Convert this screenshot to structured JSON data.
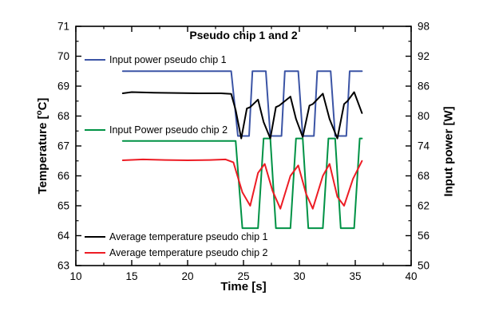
{
  "chart_data": {
    "type": "line",
    "title": "Pseudo chip 1 and 2",
    "xlabel": "Time [s]",
    "ylabel_left": {
      "pre": "Temperature [",
      "sup": "o",
      "post": "C]"
    },
    "ylabel_right": "Input power [W]",
    "x_range": [
      10,
      40
    ],
    "x_major_ticks": [
      10,
      15,
      20,
      25,
      30,
      35,
      40
    ],
    "x_minor_step": 2.5,
    "y_left_range": [
      63,
      71
    ],
    "y_left_ticks": [
      63,
      64,
      65,
      66,
      67,
      68,
      69,
      70,
      71
    ],
    "y_left_minor_step": 0.5,
    "y_right_range": [
      50,
      98
    ],
    "y_right_ticks": [
      50,
      56,
      62,
      68,
      74,
      80,
      86,
      92,
      98
    ],
    "y_right_minor_step": 3,
    "grid": false,
    "legend_position": "inside-left",
    "axis_color": "#000000",
    "background_color": "#ffffff",
    "series": [
      {
        "name": "Input power pseudo chip 1",
        "color": "#3b54a5",
        "axis": "right",
        "unit": "W",
        "points": [
          [
            14.2,
            89
          ],
          [
            23.9,
            89
          ],
          [
            24.5,
            76
          ],
          [
            25.5,
            76
          ],
          [
            25.8,
            89
          ],
          [
            27.0,
            89
          ],
          [
            27.4,
            76
          ],
          [
            28.4,
            76
          ],
          [
            28.7,
            89
          ],
          [
            29.9,
            89
          ],
          [
            30.3,
            76
          ],
          [
            31.3,
            76
          ],
          [
            31.6,
            89
          ],
          [
            32.8,
            89
          ],
          [
            33.2,
            76
          ],
          [
            34.2,
            76
          ],
          [
            34.5,
            89
          ],
          [
            35.6,
            89
          ]
        ]
      },
      {
        "name": "Input Power pseudo chip 2",
        "color": "#009245",
        "axis": "right",
        "unit": "W",
        "points": [
          [
            14.2,
            75
          ],
          [
            24.3,
            75
          ],
          [
            24.9,
            57.5
          ],
          [
            26.3,
            57.5
          ],
          [
            26.8,
            75.5
          ],
          [
            27.4,
            75.5
          ],
          [
            27.9,
            57.5
          ],
          [
            29.2,
            57.5
          ],
          [
            29.7,
            75.5
          ],
          [
            30.3,
            75.5
          ],
          [
            30.8,
            57.5
          ],
          [
            32.1,
            57.5
          ],
          [
            32.6,
            75.5
          ],
          [
            33.2,
            75.5
          ],
          [
            33.7,
            57.5
          ],
          [
            34.9,
            57.5
          ],
          [
            35.4,
            75.5
          ],
          [
            35.6,
            75.5
          ]
        ]
      },
      {
        "name": "Average temperature pseudo chip 1",
        "color": "#000000",
        "axis": "left",
        "unit": "°C",
        "points": [
          [
            14.2,
            68.76
          ],
          [
            15.0,
            68.8
          ],
          [
            17.0,
            68.78
          ],
          [
            19.0,
            68.77
          ],
          [
            21.0,
            68.76
          ],
          [
            23.0,
            68.76
          ],
          [
            23.9,
            68.74
          ],
          [
            24.3,
            68.2
          ],
          [
            24.8,
            67.25
          ],
          [
            25.3,
            68.25
          ],
          [
            25.6,
            68.3
          ],
          [
            26.3,
            68.55
          ],
          [
            26.8,
            67.8
          ],
          [
            27.4,
            67.25
          ],
          [
            27.9,
            68.3
          ],
          [
            28.2,
            68.35
          ],
          [
            29.2,
            68.65
          ],
          [
            29.7,
            67.9
          ],
          [
            30.3,
            67.3
          ],
          [
            30.9,
            68.35
          ],
          [
            31.2,
            68.4
          ],
          [
            32.1,
            68.75
          ],
          [
            32.7,
            67.9
          ],
          [
            33.4,
            67.25
          ],
          [
            34.0,
            68.4
          ],
          [
            34.3,
            68.5
          ],
          [
            34.9,
            68.8
          ],
          [
            35.6,
            68.1
          ]
        ]
      },
      {
        "name": "Average temperature pseudo chip 2",
        "color": "#ed1c24",
        "axis": "left",
        "unit": "°C",
        "points": [
          [
            14.2,
            66.52
          ],
          [
            16.0,
            66.55
          ],
          [
            18.0,
            66.53
          ],
          [
            20.0,
            66.52
          ],
          [
            22.0,
            66.53
          ],
          [
            23.4,
            66.55
          ],
          [
            24.1,
            66.45
          ],
          [
            24.9,
            65.45
          ],
          [
            25.6,
            65.0
          ],
          [
            26.3,
            66.1
          ],
          [
            26.9,
            66.4
          ],
          [
            27.6,
            65.5
          ],
          [
            28.3,
            64.9
          ],
          [
            29.2,
            66.0
          ],
          [
            29.9,
            66.35
          ],
          [
            30.6,
            65.4
          ],
          [
            31.2,
            64.9
          ],
          [
            32.1,
            66.0
          ],
          [
            32.7,
            66.4
          ],
          [
            33.4,
            65.3
          ],
          [
            34.0,
            65.0
          ],
          [
            34.8,
            65.9
          ],
          [
            35.6,
            66.5
          ]
        ]
      }
    ]
  }
}
